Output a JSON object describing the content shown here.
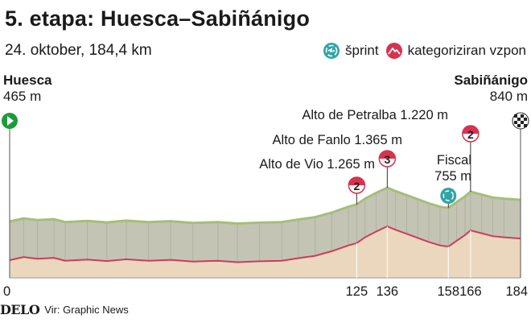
{
  "title": "5. etapa: Huesca–Sabiñánigo",
  "subtitle": "24. oktober, 184,4 km",
  "legend": {
    "sprint": {
      "label": "šprint",
      "icon": "sprint-icon",
      "color": "#2fa5a6"
    },
    "climb": {
      "label": "kategoriziran vzpon",
      "icon": "mountain-icon",
      "color": "#d8324e"
    }
  },
  "start": {
    "name": "Huesca",
    "elevation": "465 m",
    "icon": "start-flag-icon",
    "color": "#1e9a3a"
  },
  "finish": {
    "name": "Sabiñánigo",
    "elevation": "840 m",
    "icon": "finish-flag-icon"
  },
  "footer": {
    "brand": "DELO",
    "source": "Vir: Graphic News"
  },
  "chart_data": {
    "type": "area",
    "xlim": [
      0,
      184
    ],
    "x_ticks": [
      "0",
      "125",
      "136",
      "158",
      "166",
      "184"
    ],
    "colors": {
      "ground": "#ebd7bd",
      "profile_line": "#cc3d5a",
      "relief_top": "#a6bd7c",
      "relief_side": "#c4c4b4"
    },
    "profile": [
      [
        0,
        465
      ],
      [
        5,
        520
      ],
      [
        10,
        490
      ],
      [
        16,
        505
      ],
      [
        20,
        455
      ],
      [
        28,
        475
      ],
      [
        35,
        450
      ],
      [
        42,
        480
      ],
      [
        50,
        455
      ],
      [
        58,
        470
      ],
      [
        66,
        440
      ],
      [
        75,
        455
      ],
      [
        82,
        430
      ],
      [
        90,
        445
      ],
      [
        98,
        455
      ],
      [
        104,
        500
      ],
      [
        110,
        540
      ],
      [
        116,
        620
      ],
      [
        122,
        720
      ],
      [
        125,
        760
      ],
      [
        128,
        860
      ],
      [
        132,
        960
      ],
      [
        136,
        1050
      ],
      [
        139,
        990
      ],
      [
        143,
        920
      ],
      [
        147,
        850
      ],
      [
        151,
        780
      ],
      [
        155,
        720
      ],
      [
        158,
        700
      ],
      [
        161,
        800
      ],
      [
        164,
        900
      ],
      [
        166,
        980
      ],
      [
        170,
        930
      ],
      [
        174,
        880
      ],
      [
        178,
        860
      ],
      [
        184,
        840
      ]
    ],
    "climbs": [
      {
        "name": "Alto de Vio",
        "elevation": "1.265 m",
        "km": 125,
        "category": "2"
      },
      {
        "name": "Alto de Fanlo",
        "elevation": "1.365 m",
        "km": 136,
        "category": "3"
      },
      {
        "name": "Alto de Petralba",
        "elevation": "1.220 m",
        "km": 166,
        "category": "2"
      }
    ],
    "sprints": [
      {
        "name": "Fiscal",
        "elevation": "755 m",
        "km": 158
      }
    ]
  }
}
